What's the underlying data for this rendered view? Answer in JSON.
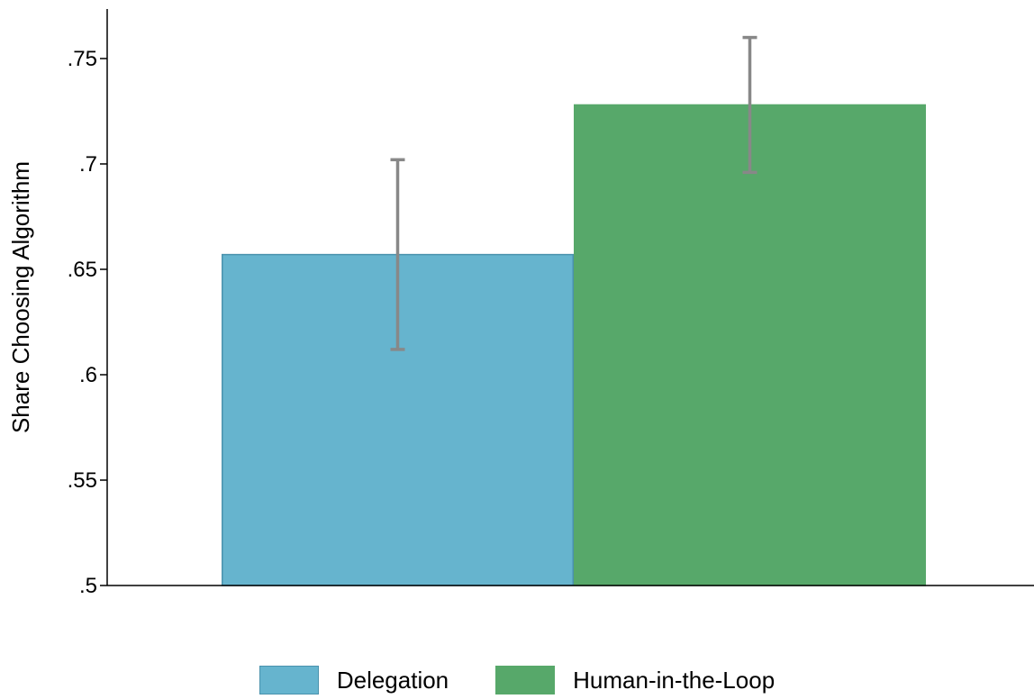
{
  "chart_data": {
    "type": "bar",
    "title": "",
    "xlabel": "",
    "ylabel": "Share Choosing Algorithm",
    "ylim": [
      0.5,
      0.775
    ],
    "yticks": [
      0.5,
      0.55,
      0.6,
      0.65,
      0.7,
      0.75
    ],
    "ytick_labels": [
      ".5",
      ".55",
      ".6",
      ".65",
      ".7",
      ".75"
    ],
    "legend_position": "bottom",
    "grid": false,
    "series": [
      {
        "name": "Delegation",
        "value": 0.657,
        "ci_low": 0.612,
        "ci_high": 0.702,
        "color": "#66b4ce",
        "edge_color": "#4a92ad"
      },
      {
        "name": "Human-in-the-Loop",
        "value": 0.728,
        "ci_low": 0.696,
        "ci_high": 0.76,
        "color": "#57a86a",
        "edge_color": "#57a86a"
      }
    ],
    "error_bar_color": "#888888"
  }
}
